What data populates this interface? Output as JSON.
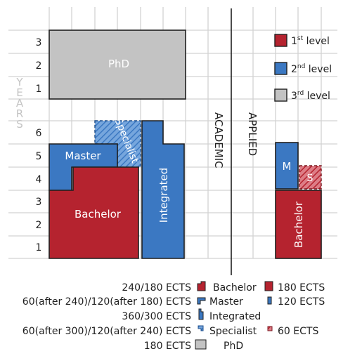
{
  "colors": {
    "red": "#b5232f",
    "blue": "#3b78c2",
    "gray": "#c3c3c3",
    "grid": "#d2d2d2",
    "ink": "#1f1f1f"
  },
  "axis": {
    "years_word": "YEARS",
    "upper_ticks": [
      "3",
      "2",
      "1"
    ],
    "lower_ticks": [
      "6",
      "5",
      "4",
      "3",
      "2",
      "1"
    ]
  },
  "divider": {
    "academic_label": "ACADEMIC",
    "applied_label": "APPLIED"
  },
  "blocks": {
    "phd": "PhD",
    "master": "Master",
    "specialist": "Specialist",
    "bachelor": "Bachelor",
    "integrated": "Integrated",
    "applied_master": "M",
    "applied_specialist": "S",
    "applied_bachelor": "Bachelor"
  },
  "level_legend": [
    {
      "base": "1",
      "sup": "st",
      "rest": " level",
      "color": "red"
    },
    {
      "base": "2",
      "sup": "nd",
      "rest": " level",
      "color": "blue"
    },
    {
      "base": "3",
      "sup": "rd",
      "rest": " level",
      "color": "gray"
    }
  ],
  "ects_legend": [
    {
      "ects": "240/180 ECTS",
      "name": "Bachelor",
      "side_label": "180 ECTS"
    },
    {
      "ects": "60(after 240)/120(after 180) ECTS",
      "name": "Master",
      "side_label": "120 ECTS"
    },
    {
      "ects": "360/300 ECTS",
      "name": "Integrated",
      "side_label": ""
    },
    {
      "ects": "60(after 300)/120(after 240) ECTS",
      "name": "Specialist",
      "side_label": "60 ECTS"
    },
    {
      "ects": "180 ECTS",
      "name": "PhD",
      "side_label": ""
    }
  ]
}
